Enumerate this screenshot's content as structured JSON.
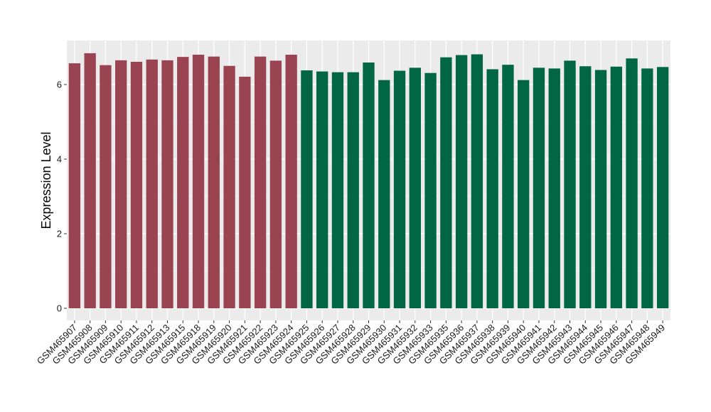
{
  "chart_data": {
    "type": "bar",
    "title": "",
    "xlabel": "",
    "ylabel": "Expression Level",
    "ylim": [
      0,
      7.1
    ],
    "yticks": [
      0,
      2,
      4,
      6
    ],
    "grid": true,
    "colors": {
      "group1": "#9a4452",
      "group2": "#006644",
      "panel": "#ebebeb",
      "grid": "#ffffff"
    },
    "categories": [
      "GSM465907",
      "GSM465908",
      "GSM465909",
      "GSM465910",
      "GSM465911",
      "GSM465912",
      "GSM465913",
      "GSM465915",
      "GSM465918",
      "GSM465919",
      "GSM465920",
      "GSM465921",
      "GSM465922",
      "GSM465923",
      "GSM465924",
      "GSM465925",
      "GSM465926",
      "GSM465927",
      "GSM465928",
      "GSM465929",
      "GSM465930",
      "GSM465931",
      "GSM465932",
      "GSM465933",
      "GSM465935",
      "GSM465936",
      "GSM465937",
      "GSM465938",
      "GSM465939",
      "GSM465940",
      "GSM465941",
      "GSM465942",
      "GSM465943",
      "GSM465944",
      "GSM465945",
      "GSM465946",
      "GSM465947",
      "GSM465948",
      "GSM465949"
    ],
    "values": [
      6.57,
      6.84,
      6.52,
      6.65,
      6.61,
      6.67,
      6.65,
      6.74,
      6.8,
      6.75,
      6.5,
      6.21,
      6.75,
      6.64,
      6.8,
      6.38,
      6.35,
      6.33,
      6.33,
      6.59,
      6.12,
      6.37,
      6.45,
      6.31,
      6.73,
      6.79,
      6.81,
      6.41,
      6.53,
      6.12,
      6.45,
      6.43,
      6.64,
      6.49,
      6.39,
      6.48,
      6.7,
      6.43,
      6.47
    ],
    "groups": [
      "group1",
      "group1",
      "group1",
      "group1",
      "group1",
      "group1",
      "group1",
      "group1",
      "group1",
      "group1",
      "group1",
      "group1",
      "group1",
      "group1",
      "group1",
      "group2",
      "group2",
      "group2",
      "group2",
      "group2",
      "group2",
      "group2",
      "group2",
      "group2",
      "group2",
      "group2",
      "group2",
      "group2",
      "group2",
      "group2",
      "group2",
      "group2",
      "group2",
      "group2",
      "group2",
      "group2",
      "group2",
      "group2",
      "group2"
    ]
  }
}
